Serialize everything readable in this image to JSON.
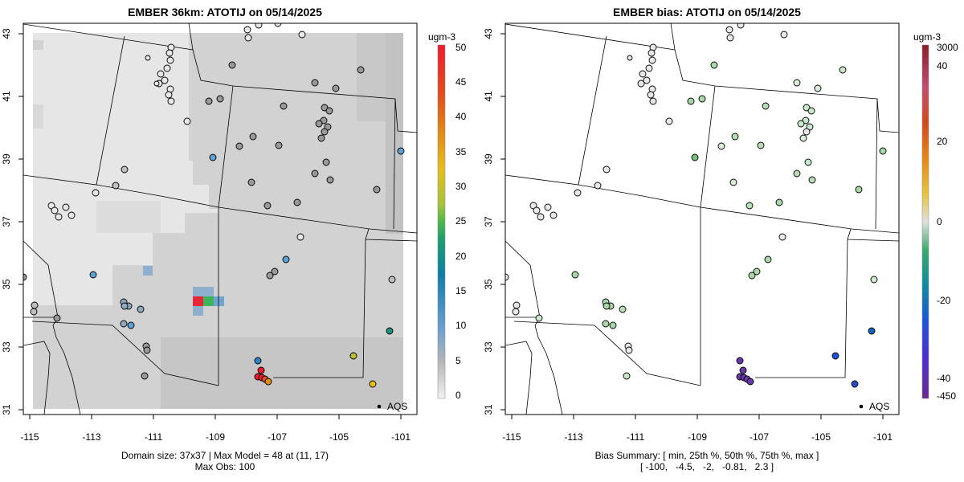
{
  "left_panel": {
    "title": "EMBER 36km: ATOTIJ on 05/14/2025",
    "footer_line1": "Domain size: 37x37 | Max Model = 48 at (11, 17)",
    "footer_line2": "Max Obs: 100",
    "legend_unit": "ugm-3",
    "legend_ticks": [
      "0",
      "5",
      "10",
      "15",
      "20",
      "25",
      "30",
      "35",
      "40",
      "45",
      "50"
    ],
    "legend_marker_label": "AQS"
  },
  "right_panel": {
    "title": "EMBER bias: ATOTIJ on 05/14/2025",
    "footer_line1": "Bias Summary: [ min, 25th %, 50th %, 75th %, max ]",
    "footer_line2": "[ -100,   -4.5,   -2,   -0.81,   2.3 ]",
    "legend_unit": "ugm-3",
    "legend_ticks": [
      "3000",
      "40",
      "20",
      "0",
      "-20",
      "-40",
      "-450"
    ],
    "legend_marker_label": "AQS"
  },
  "axes": {
    "x_ticks": [
      "-115",
      "-113",
      "-111",
      "-109",
      "-107",
      "-105",
      "-103",
      "-101"
    ],
    "y_ticks": [
      "31",
      "33",
      "35",
      "37",
      "39",
      "41",
      "43"
    ],
    "lon_range": [
      -115.3,
      -100.7
    ],
    "lat_range": [
      30.8,
      43.3
    ]
  },
  "colors": {
    "grid_light": "#e6e6e6",
    "grid_mid": "#d2d2d2",
    "grid_dark": "#c2c2c2",
    "hot_red": "#e8283a",
    "hot_green": "#3db35a",
    "hot_blue": "#6fa6cf"
  }
}
